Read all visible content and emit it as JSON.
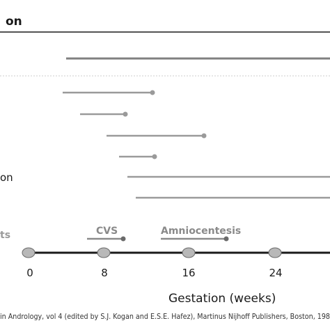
{
  "header": {
    "title_fragment": "on"
  },
  "left_labels": {
    "row_label_fragment": "on",
    "section_label_fragment": "ts"
  },
  "procedures": {
    "cvs": "CVS",
    "amniocentesis": "Amniocentesis"
  },
  "axis": {
    "ticks": [
      "0",
      "8",
      "16",
      "24"
    ],
    "title": "Gestation (weeks)"
  },
  "footer": {
    "citation": "in Andrology, vol 4 (edited by S.J. Kogan and E.S.E. Hafez), Martinus Nijhoff Publishers, Boston, 198"
  },
  "colors": {
    "bar": "#9a9a9a",
    "bar_dark": "#808080",
    "axis": "#1a1a1a",
    "node_fill": "#b8b8b8",
    "node_stroke": "#6a6a6a",
    "divider": "#cccccc",
    "text": "#1a1a1a"
  }
}
